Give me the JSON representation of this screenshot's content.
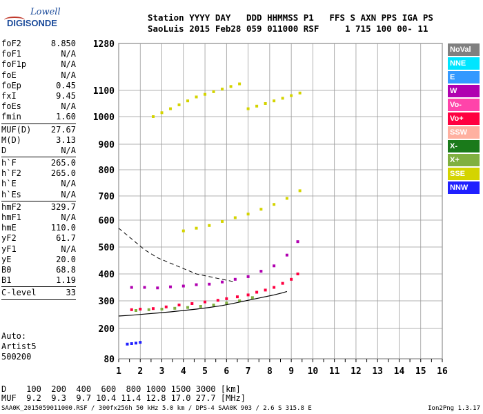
{
  "logo": {
    "brand_top": "Lowell",
    "brand_bottom": "DIGISONDE"
  },
  "header": {
    "line1": "Station YYYY DAY   DDD HHMMSS P1   FFS S AXN PPS IGA PS",
    "line2": "SaoLuis 2015 Feb28 059 011000 RSF     1 715 100 00- 11"
  },
  "params": [
    {
      "k": "foF2",
      "v": "8.850"
    },
    {
      "k": "foF1",
      "v": "N/A"
    },
    {
      "k": "foF1p",
      "v": "N/A"
    },
    {
      "k": "foE",
      "v": "N/A"
    },
    {
      "k": "foEp",
      "v": "0.45"
    },
    {
      "k": "fxI",
      "v": "9.45"
    },
    {
      "k": "foEs",
      "v": "N/A"
    },
    {
      "k": "fmin",
      "v": "1.60"
    },
    {
      "k": "MUF(D)",
      "v": "27.67"
    },
    {
      "k": "M(D)",
      "v": "3.13"
    },
    {
      "k": "D",
      "v": "N/A"
    },
    {
      "k": "h`F",
      "v": "265.0"
    },
    {
      "k": "h`F2",
      "v": "265.0"
    },
    {
      "k": "h`E",
      "v": "N/A"
    },
    {
      "k": "h`Es",
      "v": "N/A"
    },
    {
      "k": "hmF2",
      "v": "329.7"
    },
    {
      "k": "hmF1",
      "v": "N/A"
    },
    {
      "k": "hmE",
      "v": "110.0"
    },
    {
      "k": "yF2",
      "v": "61.7"
    },
    {
      "k": "yF1",
      "v": "N/A"
    },
    {
      "k": "yE",
      "v": "20.0"
    },
    {
      "k": "B0",
      "v": "68.8"
    },
    {
      "k": "B1",
      "v": "1.19"
    },
    {
      "k": "C-level",
      "v": "33"
    }
  ],
  "auto": {
    "l1": "Auto:",
    "l2": "Artist5",
    "l3": "500200"
  },
  "dmuf": {
    "dline": "D    100  200  400  600  800 1000 1500 3000 [km]",
    "mline": "MUF  9.2  9.3  9.7 10.4 11.4 12.8 17.0 27.7 [MHz]"
  },
  "footer": {
    "left": "SAA0K_2015059011000.RSF / 300fx256h 50 kHz 5.0 km / DPS-4 SAA0K 903 / 2.6 S 315.8 E",
    "right": "Ion2Png 1.3.17"
  },
  "legend": [
    {
      "label": "NoVal",
      "color": "#808080"
    },
    {
      "label": "NNE",
      "color": "#00e5ff"
    },
    {
      "label": "E",
      "color": "#3399ff"
    },
    {
      "label": "W",
      "color": "#b000b0"
    },
    {
      "label": "Vo-",
      "color": "#ff44aa"
    },
    {
      "label": "Vo+",
      "color": "#ff0040"
    },
    {
      "label": "SSW",
      "color": "#ffb0a0"
    },
    {
      "label": "X-",
      "color": "#1a7a1a"
    },
    {
      "label": "X+",
      "color": "#80b040"
    },
    {
      "label": "SSE",
      "color": "#d4d400"
    },
    {
      "label": "NNW",
      "color": "#2020ff"
    }
  ],
  "chart_data": {
    "type": "scatter",
    "title": "",
    "xlabel": "",
    "ylabel": "",
    "xlim": [
      1,
      16
    ],
    "ylim": [
      80,
      1280
    ],
    "x_ticks": [
      1,
      2,
      3,
      4,
      5,
      6,
      7,
      8,
      9,
      10,
      11,
      12,
      13,
      14,
      15,
      16
    ],
    "y_ticks": [
      80,
      200,
      300,
      400,
      500,
      600,
      700,
      800,
      900,
      1000,
      1100,
      1280
    ],
    "y_scale": "log-like (ionogram virtual height)",
    "grid": true,
    "legend_position": "right",
    "series": [
      {
        "name": "Vo+",
        "color": "#ff0040",
        "x": [
          1.6,
          2.0,
          2.6,
          3.2,
          3.8,
          4.4,
          5.0,
          5.6,
          6.0,
          6.5,
          7.0,
          7.4,
          7.8,
          8.2,
          8.6,
          9.0,
          9.3
        ],
        "y": [
          268,
          270,
          272,
          278,
          285,
          290,
          296,
          302,
          308,
          315,
          322,
          332,
          340,
          350,
          365,
          380,
          400
        ]
      },
      {
        "name": "W",
        "color": "#b000b0",
        "x": [
          1.6,
          2.2,
          2.8,
          3.4,
          4.0,
          4.6,
          5.2,
          5.8,
          6.4,
          7.0,
          7.6,
          8.2,
          8.8,
          9.3
        ],
        "y": [
          350,
          350,
          348,
          352,
          355,
          360,
          362,
          370,
          380,
          390,
          410,
          430,
          470,
          520
        ]
      },
      {
        "name": "SSE",
        "color": "#d4d400",
        "x": [
          2.6,
          3.0,
          3.4,
          3.8,
          4.2,
          4.6,
          5.0,
          5.4,
          5.8,
          6.2,
          6.6,
          7.0,
          7.4,
          7.8,
          8.2,
          8.6,
          9.0,
          9.4
        ],
        "y": [
          1000,
          1015,
          1030,
          1045,
          1060,
          1075,
          1085,
          1095,
          1105,
          1115,
          1125,
          1030,
          1040,
          1050,
          1060,
          1070,
          1080,
          1090
        ]
      },
      {
        "name": "SSE",
        "color": "#d4d400",
        "x": [
          4.0,
          4.6,
          5.2,
          5.8,
          6.4,
          7.0,
          7.6,
          8.2,
          8.8,
          9.4
        ],
        "y": [
          560,
          570,
          580,
          595,
          610,
          625,
          645,
          665,
          690,
          720
        ]
      },
      {
        "name": "NNW",
        "color": "#2020ff",
        "x": [
          1.4,
          1.6,
          1.8,
          2.0
        ],
        "y": [
          138,
          140,
          142,
          145
        ]
      },
      {
        "name": "X+",
        "color": "#80b040",
        "x": [
          1.8,
          2.4,
          3.0,
          3.6,
          4.2,
          4.8,
          5.4,
          6.0,
          6.6,
          7.2
        ],
        "y": [
          265,
          268,
          270,
          273,
          276,
          280,
          285,
          292,
          300,
          312
        ]
      }
    ],
    "fitted_profile": {
      "x": [
        1.0,
        1.6,
        2.2,
        2.8,
        3.4,
        4.0,
        4.6,
        5.2,
        5.8,
        6.4,
        7.0,
        7.6,
        8.2,
        8.6,
        8.8
      ],
      "y": [
        245,
        248,
        252,
        256,
        260,
        265,
        270,
        276,
        283,
        292,
        302,
        312,
        322,
        330,
        335
      ]
    },
    "dashed_profile": {
      "x": [
        1.0,
        1.6,
        2.2,
        2.8,
        3.4,
        4.0,
        4.6,
        5.2,
        5.8,
        6.4
      ],
      "y": [
        570,
        530,
        490,
        460,
        440,
        420,
        400,
        390,
        380,
        370
      ]
    }
  }
}
